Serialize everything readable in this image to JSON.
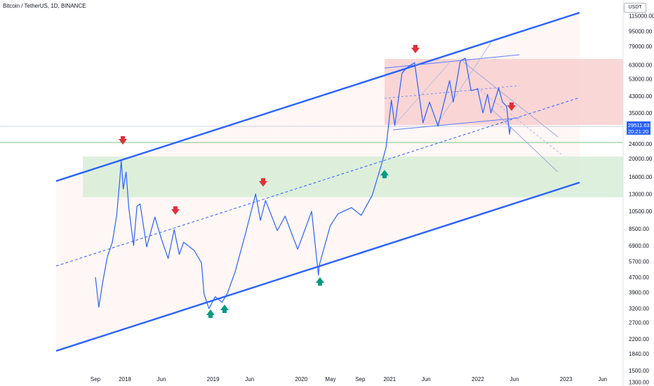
{
  "header": {
    "title": "Bitcoin / TetherUS, 1D, BINANCE"
  },
  "price_axis": {
    "currency": "USDT",
    "current_price": "29511.63",
    "countdown": "20:21:20"
  },
  "colors": {
    "price_line": "#2962ff",
    "channel": "#2962ff",
    "sell_arrow": "#e0303a",
    "buy_arrow": "#089981",
    "resistance_zone": "#f8bcbc",
    "support_zone": "#cfe9cf",
    "channel_fill": "#fff0ee"
  },
  "chart_data": {
    "type": "line",
    "title": "Bitcoin / TetherUS, 1D, BINANCE",
    "y_scale": "log",
    "y_ticks": [
      "115000.00",
      "95000.00",
      "79000.00",
      "63000.00",
      "53000.00",
      "43000.00",
      "35000.00",
      "24000.00",
      "20000.00",
      "16000.00",
      "13000.00",
      "10500.00",
      "8500.00",
      "6900.00",
      "5700.00",
      "4700.00",
      "3900.00",
      "3200.00",
      "2700.00",
      "2200.00",
      "1840.00",
      "1500.00",
      "1300.00"
    ],
    "x_ticks": [
      "Sep",
      "2018",
      "Jun",
      "2019",
      "Jun",
      "2020",
      "May",
      "Sep",
      "2021",
      "Jun",
      "2022",
      "Jun",
      "2023",
      "Jun"
    ],
    "series": [
      {
        "values": [
          [
            "2017-09-01",
            4700
          ],
          [
            "2017-09-15",
            3250
          ],
          [
            "2017-10-01",
            4400
          ],
          [
            "2017-10-20",
            6000
          ],
          [
            "2017-11-10",
            7200
          ],
          [
            "2017-11-28",
            10000
          ],
          [
            "2017-12-10",
            15000
          ],
          [
            "2017-12-17",
            19500
          ],
          [
            "2017-12-25",
            13800
          ],
          [
            "2018-01-06",
            17000
          ],
          [
            "2018-01-17",
            11000
          ],
          [
            "2018-02-06",
            6900
          ],
          [
            "2018-02-20",
            11200
          ],
          [
            "2018-03-05",
            11500
          ],
          [
            "2018-04-01",
            6800
          ],
          [
            "2018-05-05",
            9800
          ],
          [
            "2018-06-01",
            7500
          ],
          [
            "2018-06-29",
            5900
          ],
          [
            "2018-07-24",
            8400
          ],
          [
            "2018-08-14",
            6200
          ],
          [
            "2018-09-01",
            7200
          ],
          [
            "2018-10-15",
            6500
          ],
          [
            "2018-11-14",
            5600
          ],
          [
            "2018-11-25",
            3800
          ],
          [
            "2018-12-15",
            3200
          ],
          [
            "2019-01-10",
            3700
          ],
          [
            "2019-02-07",
            3450
          ],
          [
            "2019-03-01",
            3850
          ],
          [
            "2019-04-02",
            5000
          ],
          [
            "2019-05-15",
            8000
          ],
          [
            "2019-06-26",
            13000
          ],
          [
            "2019-07-16",
            9400
          ],
          [
            "2019-08-06",
            12000
          ],
          [
            "2019-09-24",
            8300
          ],
          [
            "2019-10-26",
            9900
          ],
          [
            "2019-12-17",
            6600
          ],
          [
            "2020-02-13",
            10500
          ],
          [
            "2020-03-12",
            4800
          ],
          [
            "2020-03-15",
            5400
          ],
          [
            "2020-04-30",
            8800
          ],
          [
            "2020-06-01",
            10200
          ],
          [
            "2020-07-27",
            11000
          ],
          [
            "2020-09-05",
            10000
          ],
          [
            "2020-10-21",
            12800
          ],
          [
            "2020-11-30",
            19000
          ],
          [
            "2020-12-17",
            23000
          ],
          [
            "2021-01-08",
            41000
          ],
          [
            "2021-01-22",
            30000
          ],
          [
            "2021-02-21",
            57000
          ],
          [
            "2021-03-13",
            61000
          ],
          [
            "2021-04-14",
            64800
          ],
          [
            "2021-05-19",
            31000
          ],
          [
            "2021-06-15",
            40000
          ],
          [
            "2021-07-20",
            29800
          ],
          [
            "2021-09-06",
            52000
          ],
          [
            "2021-09-21",
            40000
          ],
          [
            "2021-10-20",
            66000
          ],
          [
            "2021-11-10",
            68500
          ],
          [
            "2021-12-04",
            46000
          ],
          [
            "2021-12-31",
            47000
          ],
          [
            "2022-01-22",
            35000
          ],
          [
            "2022-02-10",
            44000
          ],
          [
            "2022-02-24",
            35000
          ],
          [
            "2022-03-28",
            47500
          ],
          [
            "2022-04-13",
            40000
          ],
          [
            "2022-04-30",
            38000
          ],
          [
            "2022-05-12",
            27000
          ],
          [
            "2022-05-16",
            29500
          ]
        ]
      }
    ]
  }
}
